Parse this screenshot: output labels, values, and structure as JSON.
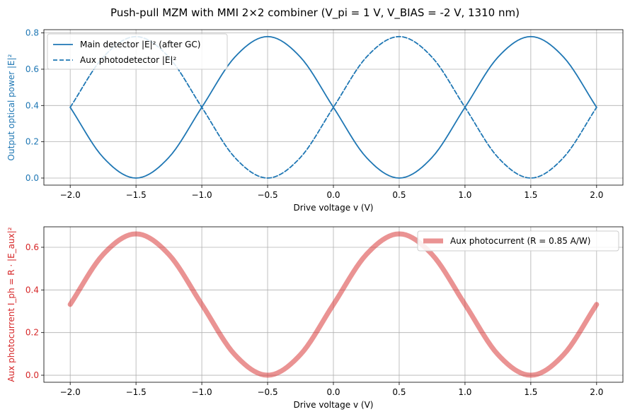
{
  "figure": {
    "suptitle": "Push-pull MZM with MMI 2×2 combiner  (V_pi = 1 V, V_BIAS = -2 V, 1310 nm)"
  },
  "colors": {
    "blue": "#1f77b4",
    "red": "#d62728",
    "grid": "#b0b0b0"
  },
  "chart_data": [
    {
      "type": "line",
      "xlabel": "Drive voltage v (V)",
      "ylabel": "Output optical power |E|²",
      "ylabel_color": "#1f77b4",
      "xlim": [
        -2.2,
        2.2
      ],
      "ylim": [
        -0.039,
        0.818
      ],
      "xticks": [
        -2.0,
        -1.5,
        -1.0,
        -0.5,
        0.0,
        0.5,
        1.0,
        1.5,
        2.0
      ],
      "xtick_labels": [
        "−2.0",
        "−1.5",
        "−1.0",
        "−0.5",
        "0.0",
        "0.5",
        "1.0",
        "1.5",
        "2.0"
      ],
      "yticks": [
        0.0,
        0.2,
        0.4,
        0.6,
        0.8
      ],
      "ytick_labels": [
        "0.0",
        "0.2",
        "0.4",
        "0.6",
        "0.8"
      ],
      "ytick_color": "#1f77b4",
      "grid": true,
      "legend": "top-left",
      "x": [
        -2.0,
        -1.75,
        -1.5,
        -1.25,
        -1.0,
        -0.75,
        -0.5,
        -0.25,
        0.0,
        0.25,
        0.5,
        0.75,
        1.0,
        1.25,
        1.5,
        1.75,
        2.0
      ],
      "series": [
        {
          "name": "Main detector |E|² (after GC)",
          "color": "#1f77b4",
          "dash": "solid",
          "values": [
            0.39,
            0.114,
            0.0,
            0.114,
            0.39,
            0.666,
            0.78,
            0.666,
            0.39,
            0.114,
            0.0,
            0.114,
            0.39,
            0.666,
            0.78,
            0.666,
            0.39
          ]
        },
        {
          "name": "Aux photodetector |E|²",
          "color": "#1f77b4",
          "dash": "dashed",
          "values": [
            0.39,
            0.666,
            0.78,
            0.666,
            0.39,
            0.114,
            0.0,
            0.114,
            0.39,
            0.666,
            0.78,
            0.666,
            0.39,
            0.114,
            0.0,
            0.114,
            0.39
          ]
        }
      ]
    },
    {
      "type": "line",
      "xlabel": "Drive voltage v (V)",
      "ylabel": "Aux photocurrent  I_ph = R · |E_aux|²",
      "ylabel_color": "#d62728",
      "xlim": [
        -2.2,
        2.2
      ],
      "ylim": [
        -0.033,
        0.696
      ],
      "xticks": [
        -2.0,
        -1.5,
        -1.0,
        -0.5,
        0.0,
        0.5,
        1.0,
        1.5,
        2.0
      ],
      "xtick_labels": [
        "−2.0",
        "−1.5",
        "−1.0",
        "−0.5",
        "0.0",
        "0.5",
        "1.0",
        "1.5",
        "2.0"
      ],
      "yticks": [
        0.0,
        0.2,
        0.4,
        0.6
      ],
      "ytick_labels": [
        "0.0",
        "0.2",
        "0.4",
        "0.6"
      ],
      "ytick_color": "#d62728",
      "grid": true,
      "legend": "top-right",
      "x": [
        -2.0,
        -1.75,
        -1.5,
        -1.25,
        -1.0,
        -0.75,
        -0.5,
        -0.25,
        0.0,
        0.25,
        0.5,
        0.75,
        1.0,
        1.25,
        1.5,
        1.75,
        2.0
      ],
      "series": [
        {
          "name": "Aux photocurrent (R = 0.85 A/W)",
          "color": "#d62728",
          "opacity": 0.5,
          "values": [
            0.332,
            0.566,
            0.663,
            0.566,
            0.332,
            0.097,
            0.0,
            0.097,
            0.332,
            0.566,
            0.663,
            0.566,
            0.332,
            0.097,
            0.0,
            0.097,
            0.332
          ]
        }
      ]
    }
  ]
}
